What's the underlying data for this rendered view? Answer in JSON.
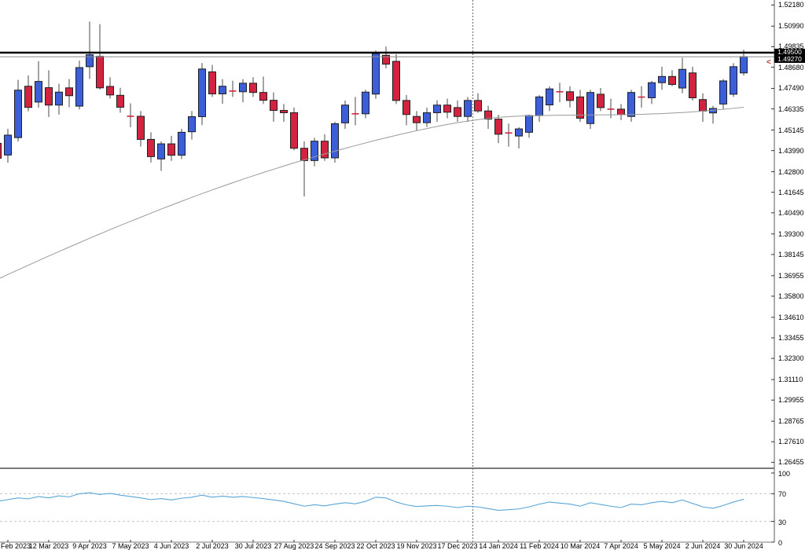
{
  "price_axis": {
    "ticks": [
      "1.52180",
      "1.50990",
      "1.49835",
      "1.48680",
      "1.47490",
      "1.46335",
      "1.45145",
      "1.43990",
      "1.42800",
      "1.41645",
      "1.40490",
      "1.39300",
      "1.38145",
      "1.36955",
      "1.35800",
      "1.34610",
      "1.33455",
      "1.32300",
      "1.31110",
      "1.29955",
      "1.28765",
      "1.27610",
      "1.26455"
    ],
    "line_price_label": "1.49500",
    "bid_price_label": "1.49270"
  },
  "indicator_axis": {
    "labels": [
      "100",
      "70",
      "30",
      "0"
    ]
  },
  "price_arrow": {
    "char": "<",
    "color": "#c0392b"
  },
  "colors": {
    "bull_fill": "#3c5fd9",
    "bear_fill": "#d22440",
    "candle_border": "#1f1f1f",
    "wick": "#4a4a4a",
    "ma_line": "#9a9a9a",
    "indicator_line": "#58a6d8",
    "resistance_line": "#000000",
    "bid_line": "#8a8a8a",
    "separator": "#7a7a7a",
    "dashed_level": "#c4c4c4",
    "year_separator": "#666666"
  },
  "chart_data": {
    "type": "candlestick",
    "timeframe": "weekly",
    "ylim": [
      1.26455,
      1.5218
    ],
    "grid": false,
    "levels": {
      "resistance": 1.495,
      "bid": 1.4927
    },
    "indicator_levels": [
      100,
      70,
      30,
      0
    ],
    "x_ticks": [
      {
        "i": 1,
        "label": "Feb 2023"
      },
      {
        "i": 5,
        "label": "12 Mar 2023"
      },
      {
        "i": 9,
        "label": "9 Apr 2023"
      },
      {
        "i": 13,
        "label": "7 May 2023"
      },
      {
        "i": 17,
        "label": "4 Jun 2023"
      },
      {
        "i": 21,
        "label": "2 Jul 2023"
      },
      {
        "i": 25,
        "label": "30 Jul 2023"
      },
      {
        "i": 29,
        "label": "27 Aug 2023"
      },
      {
        "i": 33,
        "label": "24 Sep 2023"
      },
      {
        "i": 37,
        "label": "22 Oct 2023"
      },
      {
        "i": 41,
        "label": "19 Nov 2023"
      },
      {
        "i": 45,
        "label": "17 Dec 2023"
      },
      {
        "i": 49,
        "label": "14 Jan 2024"
      },
      {
        "i": 53,
        "label": "11 Feb 2024"
      },
      {
        "i": 57,
        "label": "10 Mar 2024"
      },
      {
        "i": 61,
        "label": "7 Apr 2024"
      },
      {
        "i": 65,
        "label": "5 May 2024"
      },
      {
        "i": 69,
        "label": "2 Jun 2024"
      },
      {
        "i": 73,
        "label": "30 Jun 2024"
      }
    ],
    "year_separator_index": 46.5,
    "candles": [
      {
        "date": "2023.02.05",
        "o": 1.444,
        "h": 1.4485,
        "l": 1.43,
        "c": 1.4356
      },
      {
        "date": "2023.02.12",
        "o": 1.4374,
        "h": 1.4522,
        "l": 1.4331,
        "c": 1.4486
      },
      {
        "date": "2023.02.19",
        "o": 1.4472,
        "h": 1.4797,
        "l": 1.445,
        "c": 1.4739
      },
      {
        "date": "2023.02.26",
        "o": 1.4761,
        "h": 1.4822,
        "l": 1.462,
        "c": 1.4642
      },
      {
        "date": "2023.03.05",
        "o": 1.4672,
        "h": 1.4902,
        "l": 1.464,
        "c": 1.4788
      },
      {
        "date": "2023.03.12",
        "o": 1.4753,
        "h": 1.4851,
        "l": 1.4588,
        "c": 1.4655
      },
      {
        "date": "2023.03.19",
        "o": 1.4655,
        "h": 1.4775,
        "l": 1.4602,
        "c": 1.4728
      },
      {
        "date": "2023.03.26",
        "o": 1.4752,
        "h": 1.4802,
        "l": 1.4642,
        "c": 1.4708
      },
      {
        "date": "2023.04.02",
        "o": 1.4649,
        "h": 1.4905,
        "l": 1.463,
        "c": 1.4866
      },
      {
        "date": "2023.04.09",
        "o": 1.4871,
        "h": 1.5125,
        "l": 1.4802,
        "c": 1.4938
      },
      {
        "date": "2023.04.16",
        "o": 1.4929,
        "h": 1.511,
        "l": 1.4742,
        "c": 1.4752
      },
      {
        "date": "2023.04.23",
        "o": 1.476,
        "h": 1.4812,
        "l": 1.4692,
        "c": 1.4712
      },
      {
        "date": "2023.04.30",
        "o": 1.471,
        "h": 1.4752,
        "l": 1.4612,
        "c": 1.4643
      },
      {
        "date": "2023.05.07",
        "o": 1.4598,
        "h": 1.4665,
        "l": 1.453,
        "c": 1.4592
      },
      {
        "date": "2023.05.14",
        "o": 1.4592,
        "h": 1.4622,
        "l": 1.4422,
        "c": 1.4462
      },
      {
        "date": "2023.05.21",
        "o": 1.4462,
        "h": 1.4502,
        "l": 1.4332,
        "c": 1.4365
      },
      {
        "date": "2023.05.28",
        "o": 1.4352,
        "h": 1.4451,
        "l": 1.4285,
        "c": 1.4437
      },
      {
        "date": "2023.06.04",
        "o": 1.4437,
        "h": 1.4482,
        "l": 1.4341,
        "c": 1.4373
      },
      {
        "date": "2023.06.11",
        "o": 1.4373,
        "h": 1.4521,
        "l": 1.4351,
        "c": 1.4502
      },
      {
        "date": "2023.06.18",
        "o": 1.4505,
        "h": 1.4622,
        "l": 1.4461,
        "c": 1.459
      },
      {
        "date": "2023.06.25",
        "o": 1.459,
        "h": 1.4892,
        "l": 1.4542,
        "c": 1.4858
      },
      {
        "date": "2023.07.02",
        "o": 1.4842,
        "h": 1.4881,
        "l": 1.4701,
        "c": 1.4718
      },
      {
        "date": "2023.07.09",
        "o": 1.4718,
        "h": 1.4801,
        "l": 1.4662,
        "c": 1.4761
      },
      {
        "date": "2023.07.16",
        "o": 1.4738,
        "h": 1.4792,
        "l": 1.4701,
        "c": 1.4734
      },
      {
        "date": "2023.07.23",
        "o": 1.473,
        "h": 1.4801,
        "l": 1.4671,
        "c": 1.4778
      },
      {
        "date": "2023.07.30",
        "o": 1.4778,
        "h": 1.4812,
        "l": 1.4701,
        "c": 1.4726
      },
      {
        "date": "2023.08.06",
        "o": 1.4726,
        "h": 1.4816,
        "l": 1.4661,
        "c": 1.4682
      },
      {
        "date": "2023.08.13",
        "o": 1.4682,
        "h": 1.4726,
        "l": 1.4561,
        "c": 1.4625
      },
      {
        "date": "2023.08.20",
        "o": 1.4625,
        "h": 1.4661,
        "l": 1.4561,
        "c": 1.4612
      },
      {
        "date": "2023.08.27",
        "o": 1.4612,
        "h": 1.4641,
        "l": 1.4401,
        "c": 1.4412
      },
      {
        "date": "2023.09.03",
        "o": 1.4412,
        "h": 1.4451,
        "l": 1.4141,
        "c": 1.4343
      },
      {
        "date": "2023.09.10",
        "o": 1.4343,
        "h": 1.4471,
        "l": 1.4311,
        "c": 1.4452
      },
      {
        "date": "2023.09.17",
        "o": 1.4452,
        "h": 1.4491,
        "l": 1.4341,
        "c": 1.4358
      },
      {
        "date": "2023.09.24",
        "o": 1.4358,
        "h": 1.4561,
        "l": 1.4331,
        "c": 1.455
      },
      {
        "date": "2023.10.01",
        "o": 1.4555,
        "h": 1.4681,
        "l": 1.4521,
        "c": 1.4655
      },
      {
        "date": "2023.10.08",
        "o": 1.4612,
        "h": 1.4701,
        "l": 1.4541,
        "c": 1.4606
      },
      {
        "date": "2023.10.15",
        "o": 1.4606,
        "h": 1.4741,
        "l": 1.4581,
        "c": 1.4728
      },
      {
        "date": "2023.10.22",
        "o": 1.4717,
        "h": 1.4962,
        "l": 1.4691,
        "c": 1.4945
      },
      {
        "date": "2023.10.29",
        "o": 1.4935,
        "h": 1.4984,
        "l": 1.4862,
        "c": 1.4885
      },
      {
        "date": "2023.11.05",
        "o": 1.4901,
        "h": 1.4941,
        "l": 1.4661,
        "c": 1.4681
      },
      {
        "date": "2023.11.12",
        "o": 1.4681,
        "h": 1.4712,
        "l": 1.4541,
        "c": 1.4602
      },
      {
        "date": "2023.11.19",
        "o": 1.4591,
        "h": 1.4621,
        "l": 1.4511,
        "c": 1.4556
      },
      {
        "date": "2023.11.26",
        "o": 1.4556,
        "h": 1.4641,
        "l": 1.4531,
        "c": 1.4612
      },
      {
        "date": "2023.12.03",
        "o": 1.4612,
        "h": 1.4682,
        "l": 1.4561,
        "c": 1.4655
      },
      {
        "date": "2023.12.10",
        "o": 1.4655,
        "h": 1.4691,
        "l": 1.4581,
        "c": 1.4615
      },
      {
        "date": "2023.12.17",
        "o": 1.4641,
        "h": 1.4681,
        "l": 1.4561,
        "c": 1.4591
      },
      {
        "date": "2023.12.24",
        "o": 1.4591,
        "h": 1.4701,
        "l": 1.4561,
        "c": 1.4681
      },
      {
        "date": "2023.12.31",
        "o": 1.4681,
        "h": 1.4722,
        "l": 1.4611,
        "c": 1.4622
      },
      {
        "date": "2024.01.07",
        "o": 1.4622,
        "h": 1.4651,
        "l": 1.4521,
        "c": 1.4576
      },
      {
        "date": "2024.01.14",
        "o": 1.4576,
        "h": 1.4601,
        "l": 1.4441,
        "c": 1.4491
      },
      {
        "date": "2024.01.21",
        "o": 1.4502,
        "h": 1.4551,
        "l": 1.4421,
        "c": 1.4498
      },
      {
        "date": "2024.01.28",
        "o": 1.4481,
        "h": 1.4531,
        "l": 1.4411,
        "c": 1.4521
      },
      {
        "date": "2024.02.04",
        "o": 1.4502,
        "h": 1.4601,
        "l": 1.4471,
        "c": 1.4596
      },
      {
        "date": "2024.02.11",
        "o": 1.4596,
        "h": 1.4711,
        "l": 1.4561,
        "c": 1.4701
      },
      {
        "date": "2024.02.18",
        "o": 1.4656,
        "h": 1.4761,
        "l": 1.4621,
        "c": 1.4746
      },
      {
        "date": "2024.02.25",
        "o": 1.4734,
        "h": 1.4781,
        "l": 1.4671,
        "c": 1.473
      },
      {
        "date": "2024.03.03",
        "o": 1.473,
        "h": 1.4761,
        "l": 1.4641,
        "c": 1.4681
      },
      {
        "date": "2024.03.10",
        "o": 1.4701,
        "h": 1.4741,
        "l": 1.4561,
        "c": 1.4581
      },
      {
        "date": "2024.03.17",
        "o": 1.4551,
        "h": 1.4741,
        "l": 1.4521,
        "c": 1.4726
      },
      {
        "date": "2024.03.24",
        "o": 1.4716,
        "h": 1.4751,
        "l": 1.4621,
        "c": 1.4641
      },
      {
        "date": "2024.03.31",
        "o": 1.4636,
        "h": 1.4691,
        "l": 1.4581,
        "c": 1.4632
      },
      {
        "date": "2024.04.07",
        "o": 1.4632,
        "h": 1.4661,
        "l": 1.4571,
        "c": 1.4601
      },
      {
        "date": "2024.04.14",
        "o": 1.4591,
        "h": 1.4741,
        "l": 1.4561,
        "c": 1.4726
      },
      {
        "date": "2024.04.21",
        "o": 1.4704,
        "h": 1.4761,
        "l": 1.4641,
        "c": 1.47
      },
      {
        "date": "2024.04.28",
        "o": 1.4696,
        "h": 1.4791,
        "l": 1.4661,
        "c": 1.4781
      },
      {
        "date": "2024.05.05",
        "o": 1.4781,
        "h": 1.4871,
        "l": 1.4741,
        "c": 1.4816
      },
      {
        "date": "2024.05.12",
        "o": 1.4816,
        "h": 1.4851,
        "l": 1.4761,
        "c": 1.4771
      },
      {
        "date": "2024.05.19",
        "o": 1.4751,
        "h": 1.4921,
        "l": 1.4721,
        "c": 1.4856
      },
      {
        "date": "2024.05.26",
        "o": 1.4836,
        "h": 1.4871,
        "l": 1.4681,
        "c": 1.4696
      },
      {
        "date": "2024.06.02",
        "o": 1.4686,
        "h": 1.4721,
        "l": 1.4561,
        "c": 1.4621
      },
      {
        "date": "2024.06.09",
        "o": 1.4611,
        "h": 1.4651,
        "l": 1.4551,
        "c": 1.4636
      },
      {
        "date": "2024.06.16",
        "o": 1.4661,
        "h": 1.4801,
        "l": 1.4631,
        "c": 1.4791
      },
      {
        "date": "2024.06.23",
        "o": 1.4716,
        "h": 1.4891,
        "l": 1.4701,
        "c": 1.4871
      },
      {
        "date": "2024.06.30",
        "o": 1.4836,
        "h": 1.4966,
        "l": 1.4821,
        "c": 1.4927
      }
    ],
    "ma_series": {
      "name": "moving-average",
      "values": [
        1.3675,
        1.3702,
        1.3728,
        1.3754,
        1.378,
        1.3806,
        1.3831,
        1.3856,
        1.3881,
        1.3906,
        1.393,
        1.3954,
        1.3978,
        1.4001,
        1.4024,
        1.4047,
        1.407,
        1.4092,
        1.4114,
        1.4136,
        1.4157,
        1.4178,
        1.4198,
        1.4218,
        1.4238,
        1.4257,
        1.4276,
        1.4294,
        1.4312,
        1.433,
        1.4347,
        1.4364,
        1.438,
        1.4396,
        1.4412,
        1.4427,
        1.4442,
        1.4457,
        1.4471,
        1.4485,
        1.4498,
        1.4511,
        1.4523,
        1.4535,
        1.4546,
        1.4556,
        1.4565,
        1.4573,
        1.458,
        1.4586,
        1.459,
        1.4593,
        1.4595,
        1.4596,
        1.4597,
        1.4598,
        1.4598,
        1.4599,
        1.4599,
        1.46,
        1.46,
        1.4601,
        1.4602,
        1.4603,
        1.4605,
        1.4607,
        1.461,
        1.4613,
        1.4617,
        1.4621,
        1.4626,
        1.4631,
        1.4637,
        1.4643
      ]
    },
    "indicator": {
      "name": "oscillator",
      "range": [
        0,
        100
      ],
      "dashed_levels": [
        70,
        30
      ],
      "values": [
        59,
        61.5,
        64,
        62.5,
        66,
        64,
        67,
        65.5,
        70,
        71.5,
        69,
        70.5,
        68,
        66,
        64,
        61.5,
        63,
        61,
        63.5,
        65,
        68,
        65,
        66.5,
        65,
        66,
        64.5,
        63,
        61,
        59,
        55.5,
        52,
        54,
        52.5,
        55,
        57,
        55.5,
        59,
        65,
        64,
        58,
        54,
        51.5,
        52.5,
        53,
        52,
        50,
        52,
        51,
        48.5,
        46,
        47,
        48,
        51,
        55,
        58,
        56.5,
        55,
        52,
        57,
        54.5,
        52,
        50,
        55,
        54,
        57,
        59,
        57,
        61,
        56,
        51,
        49,
        53,
        58,
        62
      ]
    }
  }
}
